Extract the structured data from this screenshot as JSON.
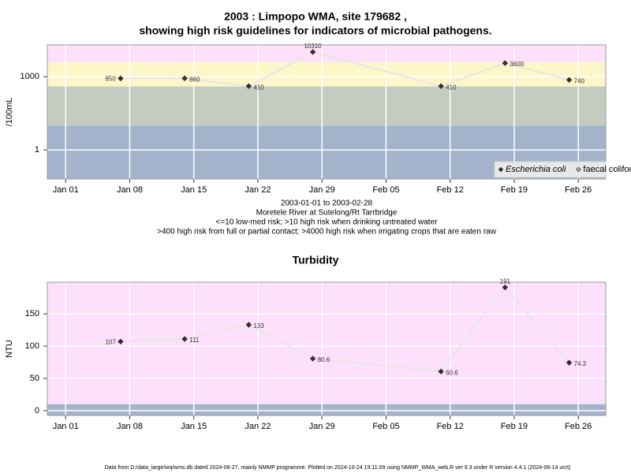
{
  "chart_data": [
    {
      "type": "line",
      "title": "2003 : Limpopo WMA, site 179682 ,",
      "subtitle": "showing high risk guidelines for indicators of microbial pathogens.",
      "ylabel": "/100mL",
      "log_scale": true,
      "x": [
        "2003-01-07",
        "2003-01-14",
        "2003-01-21",
        "2003-01-28",
        "2003-02-11",
        "2003-02-18",
        "2003-02-25"
      ],
      "series": [
        {
          "name": "Escherichia coli",
          "color": "#3a2a2e",
          "marker": "filled",
          "values": [
            850,
            860,
            410,
            10310,
            410,
            3600,
            740
          ]
        },
        {
          "name": "faecal coliforms",
          "color": "#333333",
          "marker": "open",
          "values": [
            null,
            null,
            null,
            null,
            null,
            null,
            null
          ]
        }
      ],
      "line_color": "#e6e6e6",
      "xlim": [
        "2002-12-30",
        "2003-03-01"
      ],
      "xticks": [
        {
          "value": "2003-01-01",
          "label": "Jan 01"
        },
        {
          "value": "2003-01-08",
          "label": "Jan 08"
        },
        {
          "value": "2003-01-15",
          "label": "Jan 15"
        },
        {
          "value": "2003-01-22",
          "label": "Jan 22"
        },
        {
          "value": "2003-01-29",
          "label": "Jan 29"
        },
        {
          "value": "2003-02-05",
          "label": "Feb 05"
        },
        {
          "value": "2003-02-12",
          "label": "Feb 12"
        },
        {
          "value": "2003-02-19",
          "label": "Feb 19"
        },
        {
          "value": "2003-02-26",
          "label": "Feb 26"
        }
      ],
      "ylim": [
        0.065,
        20000
      ],
      "yticks": [
        1,
        1000
      ],
      "thresholds": [
        10,
        400,
        4000
      ],
      "band_colors": [
        "#a3b3cc",
        "#c4ccc0",
        "#fdf6c8",
        "#fde0fb"
      ],
      "grid": true,
      "legend": "bottom-right",
      "notes": [
        "2003-01-01 to 2003-02-28",
        "Moretele River at Sutelong/Rt Tarrbridge",
        "<=10 low-med risk; >10 high risk when drinking untreated water",
        ">400 high risk from full or partial contact; >4000 high risk when irrigating crops that are eaten raw"
      ]
    },
    {
      "type": "line",
      "title": "Turbidity",
      "ylabel": "NTU",
      "log_scale": false,
      "x": [
        "2003-01-07",
        "2003-01-14",
        "2003-01-21",
        "2003-01-28",
        "2003-02-11",
        "2003-02-18",
        "2003-02-25"
      ],
      "values": [
        107,
        111,
        133,
        80.6,
        60.6,
        191,
        74.3
      ],
      "color": "#3a2a2e",
      "line_color": "#e6e6e6",
      "xlim": [
        "2002-12-30",
        "2003-03-01"
      ],
      "xticks": [
        {
          "value": "2003-01-01",
          "label": "Jan 01"
        },
        {
          "value": "2003-01-08",
          "label": "Jan 08"
        },
        {
          "value": "2003-01-15",
          "label": "Jan 15"
        },
        {
          "value": "2003-01-22",
          "label": "Jan 22"
        },
        {
          "value": "2003-01-29",
          "label": "Jan 29"
        },
        {
          "value": "2003-02-05",
          "label": "Feb 05"
        },
        {
          "value": "2003-02-12",
          "label": "Feb 12"
        },
        {
          "value": "2003-02-19",
          "label": "Feb 19"
        },
        {
          "value": "2003-02-26",
          "label": "Feb 26"
        }
      ],
      "ylim": [
        -7.5,
        199
      ],
      "yticks": [
        0,
        50,
        100,
        150
      ],
      "thresholds": [
        10
      ],
      "band_colors": [
        "#a3b3cc",
        "#fde0fb"
      ],
      "grid": true
    }
  ],
  "footer": "Data from D:/data_large/wq/wms.db dated 2024-08-27, mainly NMMP programme. Plotted on 2024-10-24 19:11:09 using NMMP_WMA_web.R ver 9.3 under R version 4.4.1 (2024-06-14 ucrt)"
}
